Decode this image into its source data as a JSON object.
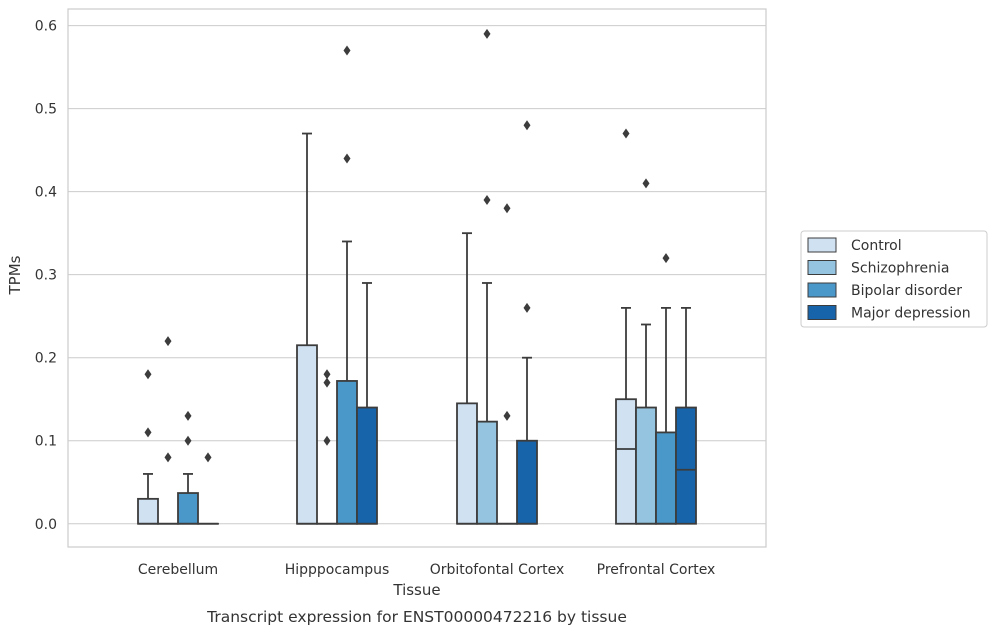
{
  "chart_data": {
    "type": "box",
    "caption": "Transcript expression for ENST00000472216 by tissue",
    "xlabel": "Tissue",
    "ylabel": "TPMs",
    "ylim": [
      -0.028,
      0.62
    ],
    "yticks": [
      0.0,
      0.1,
      0.2,
      0.3,
      0.4,
      0.5,
      0.6
    ],
    "ytick_labels": [
      "0.0",
      "0.1",
      "0.2",
      "0.3",
      "0.4",
      "0.5",
      "0.6"
    ],
    "grid": true,
    "legend_position": "right",
    "categories": [
      "Cerebellum",
      "Hipppocampus",
      "Orbitofontal Cortex",
      "Prefrontal Cortex"
    ],
    "series": [
      {
        "name": "Control",
        "color": "#d0e1f2",
        "boxes": [
          {
            "q1": 0.0,
            "median": 0.0,
            "q3": 0.03,
            "whisker_low": 0.0,
            "whisker_high": 0.06,
            "outliers": [
              0.11,
              0.18
            ]
          },
          {
            "q1": 0.0,
            "median": 0.0,
            "q3": 0.215,
            "whisker_low": 0.0,
            "whisker_high": 0.47,
            "outliers": []
          },
          {
            "q1": 0.0,
            "median": 0.0,
            "q3": 0.145,
            "whisker_low": 0.0,
            "whisker_high": 0.35,
            "outliers": []
          },
          {
            "q1": 0.0,
            "median": 0.09,
            "q3": 0.15,
            "whisker_low": 0.0,
            "whisker_high": 0.26,
            "outliers": [
              0.47
            ]
          }
        ]
      },
      {
        "name": "Schizophrenia",
        "color": "#94c4df",
        "boxes": [
          {
            "q1": 0.0,
            "median": 0.0,
            "q3": 0.0,
            "whisker_low": 0.0,
            "whisker_high": 0.0,
            "outliers": [
              0.08,
              0.22
            ]
          },
          {
            "q1": 0.0,
            "median": 0.0,
            "q3": 0.0,
            "whisker_low": 0.0,
            "whisker_high": 0.0,
            "outliers": [
              0.1,
              0.17,
              0.18
            ]
          },
          {
            "q1": 0.0,
            "median": 0.0,
            "q3": 0.123,
            "whisker_low": 0.0,
            "whisker_high": 0.29,
            "outliers": [
              0.39,
              0.59
            ]
          },
          {
            "q1": 0.0,
            "median": 0.0,
            "q3": 0.14,
            "whisker_low": 0.0,
            "whisker_high": 0.24,
            "outliers": [
              0.41
            ]
          }
        ]
      },
      {
        "name": "Bipolar disorder",
        "color": "#4a98c9",
        "boxes": [
          {
            "q1": 0.0,
            "median": 0.0,
            "q3": 0.037,
            "whisker_low": 0.0,
            "whisker_high": 0.06,
            "outliers": [
              0.1,
              0.13
            ]
          },
          {
            "q1": 0.0,
            "median": 0.0,
            "q3": 0.172,
            "whisker_low": 0.0,
            "whisker_high": 0.34,
            "outliers": [
              0.44,
              0.57
            ]
          },
          {
            "q1": 0.0,
            "median": 0.0,
            "q3": 0.0,
            "whisker_low": 0.0,
            "whisker_high": 0.0,
            "outliers": [
              0.13,
              0.38
            ]
          },
          {
            "q1": 0.0,
            "median": 0.0,
            "q3": 0.11,
            "whisker_low": 0.0,
            "whisker_high": 0.26,
            "outliers": [
              0.32
            ]
          }
        ]
      },
      {
        "name": "Major depression",
        "color": "#1764ab",
        "boxes": [
          {
            "q1": 0.0,
            "median": 0.0,
            "q3": 0.0,
            "whisker_low": 0.0,
            "whisker_high": 0.0,
            "outliers": [
              0.08
            ]
          },
          {
            "q1": 0.0,
            "median": 0.0,
            "q3": 0.14,
            "whisker_low": 0.0,
            "whisker_high": 0.29,
            "outliers": []
          },
          {
            "q1": 0.0,
            "median": 0.0,
            "q3": 0.1,
            "whisker_low": 0.0,
            "whisker_high": 0.2,
            "outliers": [
              0.26,
              0.48
            ]
          },
          {
            "q1": 0.0,
            "median": 0.065,
            "q3": 0.14,
            "whisker_low": 0.0,
            "whisker_high": 0.26,
            "outliers": []
          }
        ]
      }
    ]
  }
}
